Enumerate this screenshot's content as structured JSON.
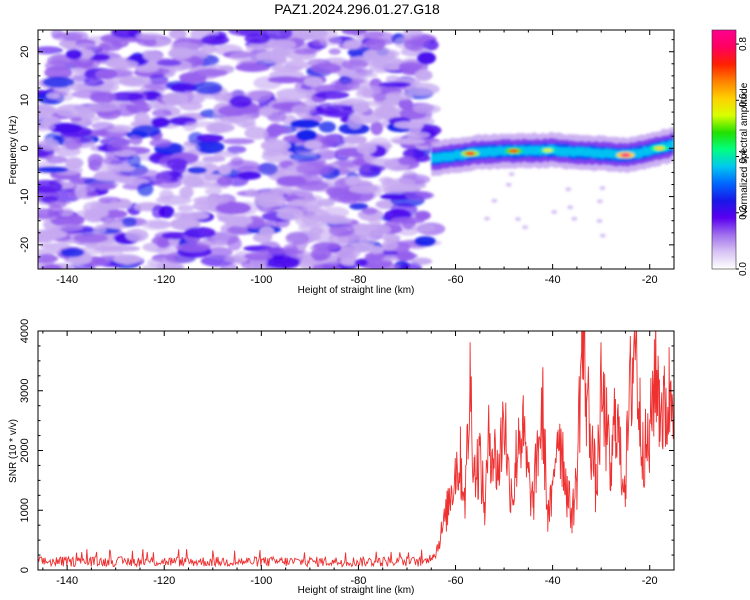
{
  "title": "PAZ1.2024.296.01.27.G18",
  "chart_data": [
    {
      "type": "heatmap",
      "xlabel": "Height of straight line (km)",
      "ylabel": "Frequency (Hz)",
      "xlim": [
        -146,
        -15
      ],
      "ylim": [
        -25,
        24.5
      ],
      "xticks": [
        -140,
        -120,
        -100,
        -80,
        -60,
        -40,
        -20
      ],
      "yticks": [
        -20,
        -10,
        0,
        10,
        20
      ],
      "noise_region_x": [
        -146,
        -65
      ],
      "signal_start_x": -65,
      "signal_ridge": [
        {
          "x": -65,
          "y": -2.2
        },
        {
          "x": -60,
          "y": -1.5
        },
        {
          "x": -55,
          "y": -0.8
        },
        {
          "x": -50,
          "y": -0.6
        },
        {
          "x": -45,
          "y": -0.5
        },
        {
          "x": -40,
          "y": -0.4
        },
        {
          "x": -35,
          "y": -0.8
        },
        {
          "x": -30,
          "y": -1.0
        },
        {
          "x": -25,
          "y": -1.4
        },
        {
          "x": -20,
          "y": -0.5
        },
        {
          "x": -15,
          "y": 0.8
        }
      ],
      "hot_spots": [
        {
          "x": -57,
          "y": -2,
          "amp": 0.75
        },
        {
          "x": -48,
          "y": -0.6,
          "amp": 0.7
        },
        {
          "x": -41,
          "y": -0.4,
          "amp": 0.55
        },
        {
          "x": -25,
          "y": -1.6,
          "amp": 0.85
        },
        {
          "x": -18,
          "y": 0.2,
          "amp": 0.6
        }
      ],
      "colorbar": {
        "label": "Normalized spectral amplitude",
        "range": [
          0,
          0.85
        ],
        "ticks": [
          0.0,
          0.2,
          0.4,
          0.6,
          0.8
        ],
        "tick_labels": [
          "0.0",
          "0.2",
          "0.4",
          "0.6",
          "0.8"
        ],
        "colors": [
          "#ffffff",
          "#d8c4f4",
          "#a070ec",
          "#5a00f0",
          "#1818e8",
          "#0066ff",
          "#00c8f0",
          "#00ff80",
          "#22e000",
          "#d8ff00",
          "#ffd000",
          "#ff8000",
          "#ff2000",
          "#ff0060",
          "#ff0090"
        ]
      }
    },
    {
      "type": "line",
      "xlabel": "Height of straight line (km)",
      "ylabel": "SNR (10 * v/v)",
      "xlim": [
        -146,
        -15
      ],
      "ylim": [
        0,
        4000
      ],
      "xticks": [
        -140,
        -120,
        -100,
        -80,
        -60,
        -40,
        -20
      ],
      "yticks": [
        0,
        1000,
        2000,
        3000,
        4000
      ],
      "series": [
        {
          "color": "#ee3030",
          "noise_level_region_x": [
            -146,
            -66
          ],
          "noise_level": [
            80,
            320
          ],
          "x": [
            -146,
            -66,
            -64,
            -62,
            -61,
            -60,
            -59,
            -58,
            -57,
            -56,
            -55,
            -54,
            -53,
            -52,
            -51,
            -50,
            -49,
            -48,
            -47,
            -46,
            -45,
            -44,
            -43,
            -42,
            -41,
            -40,
            -39,
            -38,
            -37,
            -36,
            -35,
            -34,
            -33,
            -32,
            -31,
            -30,
            -29,
            -28,
            -27,
            -26,
            -25,
            -24,
            -23,
            -22,
            -21,
            -20,
            -19,
            -18,
            -17,
            -16,
            -15
          ],
          "y": [
            150,
            150,
            300,
            900,
            1300,
            1700,
            1800,
            1200,
            3100,
            1600,
            1900,
            1000,
            2300,
            1900,
            1700,
            2700,
            1500,
            1300,
            2400,
            2200,
            1500,
            1100,
            2100,
            2600,
            900,
            1200,
            2500,
            2000,
            1300,
            900,
            1500,
            3900,
            2900,
            2200,
            1300,
            2900,
            2400,
            1500,
            2800,
            1800,
            1500,
            3000,
            4000,
            2500,
            2000,
            2100,
            3400,
            2900,
            2600,
            2900,
            3200
          ]
        }
      ]
    }
  ]
}
